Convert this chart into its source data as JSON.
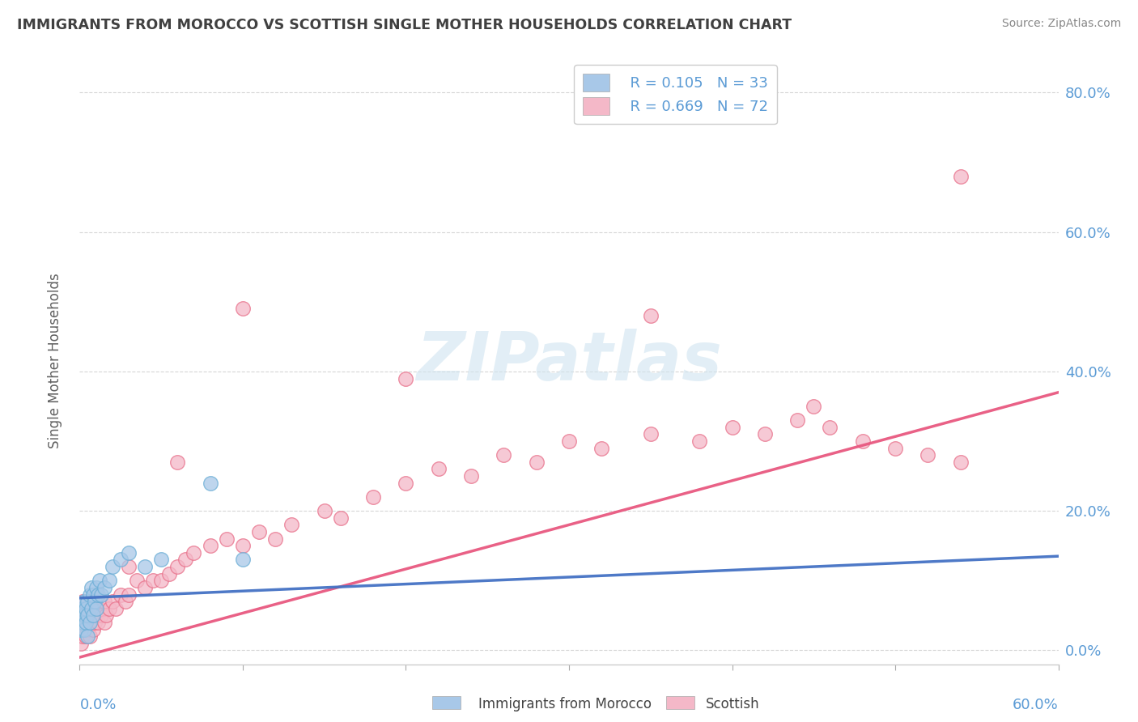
{
  "title": "IMMIGRANTS FROM MOROCCO VS SCOTTISH SINGLE MOTHER HOUSEHOLDS CORRELATION CHART",
  "source": "Source: ZipAtlas.com",
  "ylabel": "Single Mother Households",
  "xlim": [
    0.0,
    0.6
  ],
  "ylim": [
    -0.02,
    0.85
  ],
  "yticks": [
    0.0,
    0.2,
    0.4,
    0.6,
    0.8
  ],
  "right_tick_labels": [
    "0.0%",
    "20.0%",
    "40.0%",
    "60.0%",
    "80.0%"
  ],
  "legend_r1": "R = 0.105",
  "legend_n1": "N = 33",
  "legend_r2": "R = 0.669",
  "legend_n2": "N = 72",
  "color_morocco_fill": "#a8c8e8",
  "color_morocco_edge": "#6baed6",
  "color_scottish_fill": "#f4b8c8",
  "color_scottish_edge": "#e8708a",
  "color_line_morocco": "#4472c4",
  "color_line_scottish": "#e85880",
  "color_axis_label": "#5b9bd5",
  "color_title": "#404040",
  "color_source": "#888888",
  "color_ylabel": "#606060",
  "color_grid": "#cccccc",
  "color_watermark": "#d0e4f0",
  "watermark_text": "ZIPatlas",
  "morocco_x": [
    0.001,
    0.001,
    0.002,
    0.002,
    0.003,
    0.003,
    0.003,
    0.004,
    0.004,
    0.005,
    0.005,
    0.005,
    0.006,
    0.006,
    0.007,
    0.007,
    0.008,
    0.008,
    0.009,
    0.01,
    0.01,
    0.011,
    0.012,
    0.013,
    0.015,
    0.018,
    0.02,
    0.025,
    0.03,
    0.04,
    0.05,
    0.08,
    0.1
  ],
  "morocco_y": [
    0.03,
    0.05,
    0.04,
    0.06,
    0.03,
    0.05,
    0.07,
    0.04,
    0.06,
    0.02,
    0.05,
    0.07,
    0.04,
    0.08,
    0.06,
    0.09,
    0.05,
    0.08,
    0.07,
    0.06,
    0.09,
    0.08,
    0.1,
    0.08,
    0.09,
    0.1,
    0.12,
    0.13,
    0.14,
    0.12,
    0.13,
    0.24,
    0.13
  ],
  "scottish_x": [
    0.001,
    0.001,
    0.002,
    0.002,
    0.003,
    0.003,
    0.004,
    0.004,
    0.005,
    0.005,
    0.006,
    0.006,
    0.007,
    0.008,
    0.008,
    0.009,
    0.01,
    0.011,
    0.012,
    0.013,
    0.015,
    0.015,
    0.016,
    0.018,
    0.02,
    0.022,
    0.025,
    0.028,
    0.03,
    0.035,
    0.04,
    0.045,
    0.05,
    0.055,
    0.06,
    0.065,
    0.07,
    0.08,
    0.09,
    0.1,
    0.11,
    0.12,
    0.13,
    0.15,
    0.16,
    0.18,
    0.2,
    0.22,
    0.24,
    0.26,
    0.28,
    0.3,
    0.32,
    0.35,
    0.38,
    0.4,
    0.42,
    0.44,
    0.46,
    0.48,
    0.5,
    0.52,
    0.54,
    0.002,
    0.01,
    0.03,
    0.06,
    0.1,
    0.2,
    0.35,
    0.45,
    0.54
  ],
  "scottish_y": [
    0.01,
    0.03,
    0.02,
    0.04,
    0.03,
    0.05,
    0.02,
    0.04,
    0.03,
    0.05,
    0.02,
    0.04,
    0.05,
    0.03,
    0.06,
    0.04,
    0.05,
    0.04,
    0.06,
    0.05,
    0.04,
    0.07,
    0.05,
    0.06,
    0.07,
    0.06,
    0.08,
    0.07,
    0.08,
    0.1,
    0.09,
    0.1,
    0.1,
    0.11,
    0.12,
    0.13,
    0.14,
    0.15,
    0.16,
    0.15,
    0.17,
    0.16,
    0.18,
    0.2,
    0.19,
    0.22,
    0.24,
    0.26,
    0.25,
    0.28,
    0.27,
    0.3,
    0.29,
    0.31,
    0.3,
    0.32,
    0.31,
    0.33,
    0.32,
    0.3,
    0.29,
    0.28,
    0.27,
    0.07,
    0.08,
    0.12,
    0.27,
    0.49,
    0.39,
    0.48,
    0.35,
    0.68
  ],
  "morocco_line_x0": 0.0,
  "morocco_line_y0": 0.075,
  "morocco_line_x1": 0.6,
  "morocco_line_y1": 0.135,
  "scottish_line_x0": 0.0,
  "scottish_line_y0": -0.01,
  "scottish_line_x1": 0.6,
  "scottish_line_y1": 0.37
}
